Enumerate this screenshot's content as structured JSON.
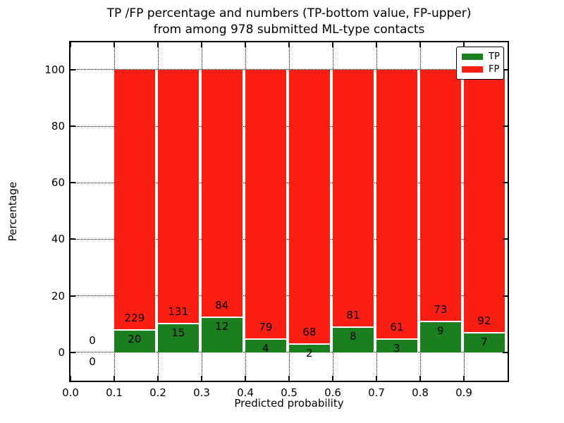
{
  "title": {
    "line1": "TP /FP percentage and numbers (TP-bottom value, FP-upper)",
    "line2": "from among 978 submitted ML-type contacts"
  },
  "chart_data": {
    "type": "bar",
    "stacked": true,
    "title": "TP /FP percentage and numbers (TP-bottom value, FP-upper) from among 978 submitted ML-type contacts",
    "xlabel": "Predicted probability",
    "ylabel": "Percentage",
    "xlim": [
      0.0,
      1.0
    ],
    "ylim": [
      -10,
      109.7
    ],
    "grid": true,
    "bar_width": 0.093,
    "xticks": [
      {
        "value": 0.0,
        "label": "0.0"
      },
      {
        "value": 0.1,
        "label": "0.1"
      },
      {
        "value": 0.2,
        "label": "0.2"
      },
      {
        "value": 0.3,
        "label": "0.3"
      },
      {
        "value": 0.4,
        "label": "0.4"
      },
      {
        "value": 0.5,
        "label": "0.5"
      },
      {
        "value": 0.6,
        "label": "0.6"
      },
      {
        "value": 0.7,
        "label": "0.7"
      },
      {
        "value": 0.8,
        "label": "0.8"
      },
      {
        "value": 0.9,
        "label": "0.9"
      }
    ],
    "yticks": [
      {
        "value": 0,
        "label": "0"
      },
      {
        "value": 20,
        "label": "20"
      },
      {
        "value": 40,
        "label": "40"
      },
      {
        "value": 60,
        "label": "60"
      },
      {
        "value": 80,
        "label": "80"
      },
      {
        "value": 100,
        "label": "100"
      }
    ],
    "legend": {
      "position": "upper right",
      "items": [
        {
          "label": "TP",
          "color": "#1b7e1f"
        },
        {
          "label": "FP",
          "color": "#fb1e13"
        }
      ]
    },
    "series_note": "green segment height = tp/(tp+fp)*100 percent, red stacked to 100 percent",
    "bins": [
      {
        "x_start": 0.0,
        "tp": 0,
        "fp": 0
      },
      {
        "x_start": 0.1,
        "tp": 20,
        "fp": 229
      },
      {
        "x_start": 0.2,
        "tp": 15,
        "fp": 131
      },
      {
        "x_start": 0.3,
        "tp": 12,
        "fp": 84
      },
      {
        "x_start": 0.4,
        "tp": 4,
        "fp": 79
      },
      {
        "x_start": 0.5,
        "tp": 2,
        "fp": 68
      },
      {
        "x_start": 0.6,
        "tp": 8,
        "fp": 81
      },
      {
        "x_start": 0.7,
        "tp": 3,
        "fp": 61
      },
      {
        "x_start": 0.8,
        "tp": 9,
        "fp": 73
      },
      {
        "x_start": 0.9,
        "tp": 7,
        "fp": 92
      }
    ]
  }
}
